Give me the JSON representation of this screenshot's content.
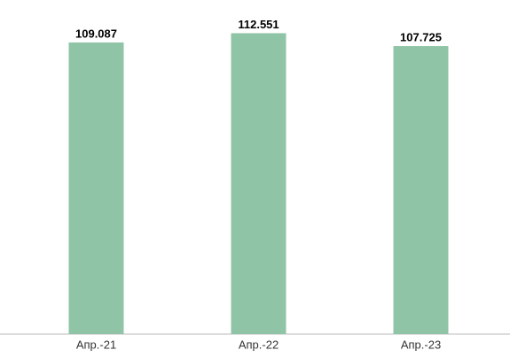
{
  "chart_data": {
    "type": "bar",
    "categories": [
      "Апр.-21",
      "Апр.-22",
      "Апр.-23"
    ],
    "values": [
      109.087,
      112.551,
      107.725
    ],
    "color": "#8fc4a6",
    "ylim": [
      0,
      120
    ]
  }
}
